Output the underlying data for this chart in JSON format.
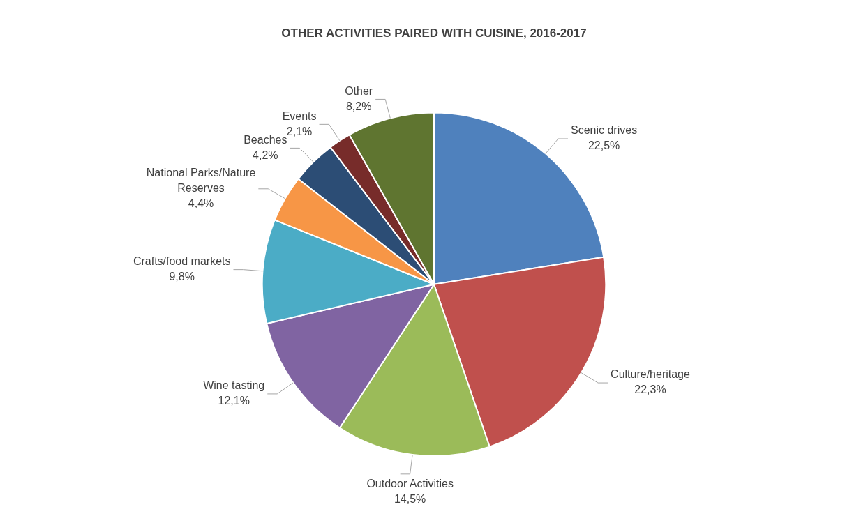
{
  "chart_data": {
    "type": "pie",
    "title": "OTHER ACTIVITIES PAIRED WITH CUISINE, 2016-2017",
    "categories": [
      "Scenic drives",
      "Culture/heritage",
      "Outdoor Activities",
      "Wine tasting",
      "Crafts/food markets",
      "National Parks/Nature Reserves",
      "Beaches",
      "Events",
      "Other"
    ],
    "values": [
      22.5,
      22.3,
      14.5,
      12.1,
      9.8,
      4.4,
      4.2,
      2.1,
      8.2
    ],
    "value_labels": [
      "22,5%",
      "22,3%",
      "14,5%",
      "12,1%",
      "9,8%",
      "4,4%",
      "4,2%",
      "2,1%",
      "8,2%"
    ],
    "colors": [
      "#4f81bd",
      "#c0504d",
      "#9bbb59",
      "#8064a2",
      "#4bacc6",
      "#f79646",
      "#2c4d75",
      "#772c2a",
      "#5f7530"
    ],
    "legend": false
  }
}
